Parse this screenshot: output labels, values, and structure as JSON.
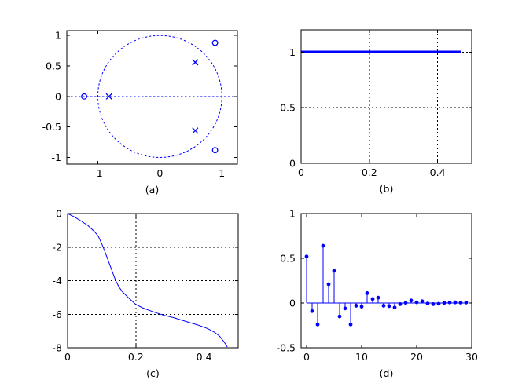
{
  "figure": {
    "background": "#ffffff",
    "accent_color": "#0000ff",
    "axis_color": "#000000",
    "grid_color": "#000000"
  },
  "chart_data": [
    {
      "id": "a",
      "type": "scatter",
      "subtype": "pole_zero",
      "title": "",
      "xlabel": "(a)",
      "ylabel": "",
      "xlim": [
        -1.5,
        1.25
      ],
      "ylim": [
        -1.11,
        1.08
      ],
      "xticks": [
        -1,
        0,
        1
      ],
      "yticks": [
        1,
        0.5,
        0,
        -0.5,
        -1
      ],
      "grid": false,
      "unit_circle": true,
      "axis_cross_lines": true,
      "zero_marker": "o",
      "pole_marker": "x",
      "zeros": [
        [
          0.89,
          0.88
        ],
        [
          0.89,
          -0.88
        ],
        [
          -1.22,
          0
        ]
      ],
      "poles": [
        [
          0.57,
          0.56
        ],
        [
          0.57,
          -0.56
        ],
        [
          -0.82,
          0
        ]
      ]
    },
    {
      "id": "b",
      "type": "line",
      "title": "",
      "xlabel": "(b)",
      "ylabel": "",
      "xlim": [
        0,
        0.5
      ],
      "ylim": [
        0,
        1.2
      ],
      "xticks": [
        0,
        0.2,
        0.4
      ],
      "yticks": [
        0,
        0.5,
        1
      ],
      "grid": true,
      "line_width": 3.5,
      "x": [
        0,
        0.47
      ],
      "y": [
        1,
        1
      ]
    },
    {
      "id": "c",
      "type": "line",
      "title": "",
      "xlabel": "(c)",
      "ylabel": "",
      "xlim": [
        0,
        0.5
      ],
      "ylim": [
        -8,
        0
      ],
      "xticks": [
        0,
        0.2,
        0.4
      ],
      "yticks": [
        0,
        -2,
        -4,
        -6,
        -8
      ],
      "grid": true,
      "line_width": 1,
      "x": [
        0,
        0.02,
        0.04,
        0.06,
        0.08,
        0.09,
        0.1,
        0.11,
        0.12,
        0.13,
        0.14,
        0.15,
        0.16,
        0.18,
        0.2,
        0.22,
        0.25,
        0.28,
        0.31,
        0.35,
        0.38,
        0.41,
        0.43,
        0.445,
        0.455,
        0.462,
        0.468
      ],
      "y": [
        0,
        -0.2,
        -0.45,
        -0.72,
        -1.1,
        -1.35,
        -1.8,
        -2.3,
        -2.85,
        -3.4,
        -3.95,
        -4.35,
        -4.65,
        -5.05,
        -5.42,
        -5.62,
        -5.85,
        -6.05,
        -6.2,
        -6.45,
        -6.63,
        -6.85,
        -7.07,
        -7.3,
        -7.55,
        -7.75,
        -7.95
      ]
    },
    {
      "id": "d",
      "type": "stem",
      "title": "",
      "xlabel": "(d)",
      "ylabel": "",
      "xlim": [
        -1,
        30
      ],
      "ylim": [
        -0.5,
        1
      ],
      "xticks": [
        0,
        10,
        20,
        30
      ],
      "yticks": [
        1,
        0.5,
        0,
        -0.5
      ],
      "grid": false,
      "baseline": true,
      "x": [
        0,
        1,
        2,
        3,
        4,
        5,
        6,
        7,
        8,
        9,
        10,
        11,
        12,
        13,
        14,
        15,
        16,
        17,
        18,
        19,
        20,
        21,
        22,
        23,
        24,
        25,
        26,
        27,
        28,
        29
      ],
      "values": [
        0.52,
        -0.09,
        -0.24,
        0.64,
        0.21,
        0.36,
        -0.15,
        -0.06,
        -0.24,
        -0.03,
        -0.04,
        0.11,
        0.045,
        0.06,
        -0.03,
        -0.035,
        -0.05,
        -0.012,
        0.002,
        0.028,
        0.008,
        0.02,
        -0.005,
        -0.012,
        -0.008,
        0.002,
        0.006,
        0.007,
        0.004,
        0.006
      ]
    }
  ]
}
